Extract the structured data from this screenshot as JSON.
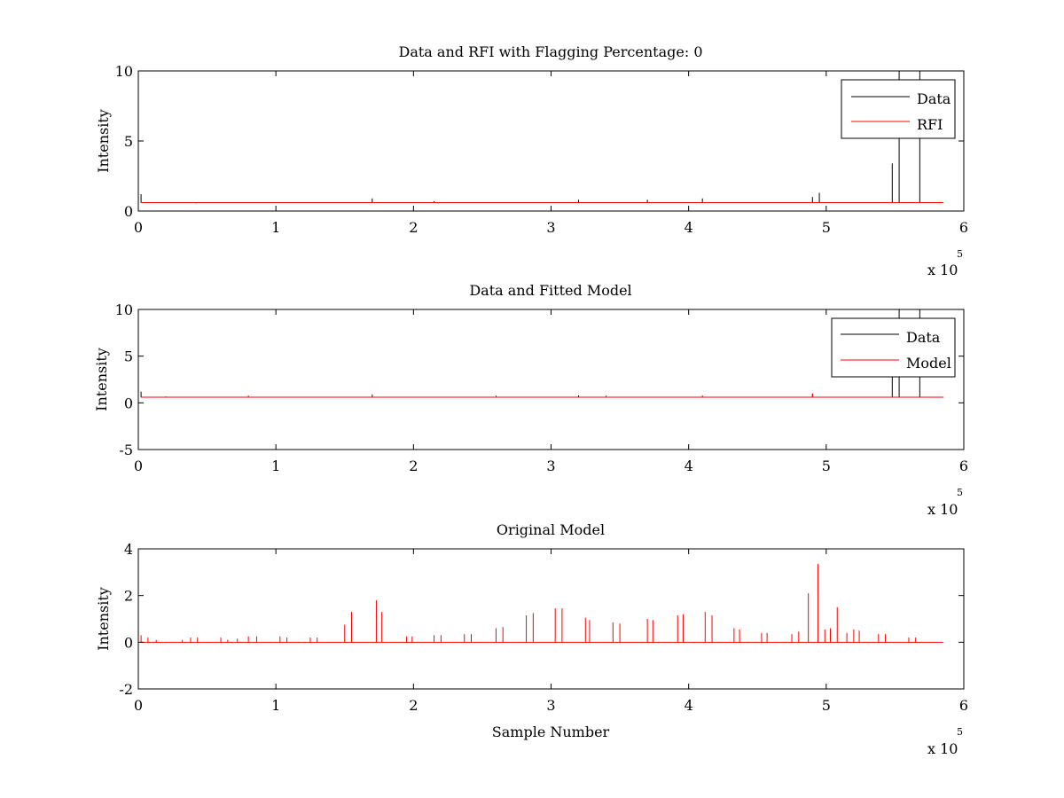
{
  "chart_data": [
    {
      "type": "line",
      "title": "Data and RFI with Flagging Percentage: 0",
      "xlabel": "",
      "ylabel": "Intensity",
      "xlim": [
        0,
        6
      ],
      "ylim": [
        0,
        10
      ],
      "xticks": [
        "0",
        "1",
        "2",
        "3",
        "4",
        "5",
        "6"
      ],
      "yticks": [
        "0",
        "5",
        "10"
      ],
      "x_exponent_label": "x 10",
      "x_exponent": "5",
      "legend": [
        "Data",
        "RFI"
      ],
      "legend_position": "top-right",
      "baseline": 0.6,
      "series": [
        {
          "name": "Data",
          "color": "#000000",
          "spikes": [
            [
              0.02,
              1.2
            ],
            [
              1.7,
              0.9
            ],
            [
              2.15,
              0.7
            ],
            [
              3.2,
              0.8
            ],
            [
              3.7,
              0.8
            ],
            [
              4.1,
              0.9
            ],
            [
              4.9,
              1.0
            ],
            [
              4.95,
              1.3
            ],
            [
              5.48,
              3.4
            ],
            [
              5.53,
              10
            ],
            [
              5.68,
              10
            ]
          ]
        },
        {
          "name": "RFI",
          "color": "#ff0000",
          "spikes": [
            [
              0.42,
              0.55
            ],
            [
              2.18,
              0.55
            ]
          ]
        }
      ]
    },
    {
      "type": "line",
      "title": "Data and Fitted Model",
      "xlabel": "",
      "ylabel": "Intensity",
      "xlim": [
        0,
        6
      ],
      "ylim": [
        -5,
        10
      ],
      "xticks": [
        "0",
        "1",
        "2",
        "3",
        "4",
        "5",
        "6"
      ],
      "yticks": [
        "-5",
        "0",
        "5",
        "10"
      ],
      "x_exponent_label": "x 10",
      "x_exponent": "5",
      "legend": [
        "Data",
        "Model"
      ],
      "legend_position": "top-right",
      "baseline": 0.6,
      "series": [
        {
          "name": "Data",
          "color": "#000000",
          "spikes": [
            [
              0.02,
              1.2
            ],
            [
              1.7,
              0.9
            ],
            [
              3.2,
              0.8
            ],
            [
              4.9,
              1.0
            ],
            [
              5.48,
              3.4
            ],
            [
              5.53,
              10
            ],
            [
              5.68,
              10
            ]
          ]
        },
        {
          "name": "Model",
          "color": "#ff0000",
          "spikes": [
            [
              0.2,
              0.7
            ],
            [
              0.8,
              0.8
            ],
            [
              1.7,
              0.9
            ],
            [
              2.6,
              0.8
            ],
            [
              3.4,
              0.8
            ],
            [
              4.1,
              0.8
            ],
            [
              4.9,
              1.0
            ]
          ]
        }
      ]
    },
    {
      "type": "line",
      "title": "Original Model",
      "xlabel": "Sample Number",
      "ylabel": "Intensity",
      "xlim": [
        0,
        6
      ],
      "ylim": [
        -2,
        4
      ],
      "xticks": [
        "0",
        "1",
        "2",
        "3",
        "4",
        "5",
        "6"
      ],
      "yticks": [
        "-2",
        "0",
        "2",
        "4"
      ],
      "x_exponent_label": "x 10",
      "x_exponent": "5",
      "baseline": 0.0,
      "series": [
        {
          "color": "#ff0000",
          "spikes": [
            [
              0.02,
              0.3
            ],
            [
              0.07,
              0.2
            ],
            [
              0.13,
              0.1
            ],
            [
              0.32,
              0.1
            ],
            [
              0.38,
              0.2
            ],
            [
              0.43,
              0.2
            ],
            [
              0.6,
              0.2
            ],
            [
              0.65,
              0.1
            ],
            [
              0.72,
              0.15
            ],
            [
              0.8,
              0.25
            ],
            [
              0.86,
              0.25
            ],
            [
              1.03,
              0.25
            ],
            [
              1.08,
              0.2
            ],
            [
              1.25,
              0.2
            ],
            [
              1.3,
              0.2
            ],
            [
              1.5,
              0.75
            ],
            [
              1.55,
              1.3
            ],
            [
              1.73,
              1.8
            ],
            [
              1.77,
              1.3
            ],
            [
              1.95,
              0.25
            ],
            [
              1.99,
              0.25
            ],
            [
              2.15,
              0.3
            ],
            [
              2.2,
              0.3
            ],
            [
              2.37,
              0.35
            ],
            [
              2.42,
              0.35
            ],
            [
              2.6,
              0.6
            ],
            [
              2.65,
              0.65
            ],
            [
              2.82,
              1.15
            ],
            [
              2.87,
              1.25
            ],
            [
              3.03,
              1.45
            ],
            [
              3.08,
              1.45
            ],
            [
              3.25,
              1.05
            ],
            [
              3.28,
              0.95
            ],
            [
              3.45,
              0.85
            ],
            [
              3.5,
              0.8
            ],
            [
              3.7,
              1.0
            ],
            [
              3.74,
              0.95
            ],
            [
              3.92,
              1.15
            ],
            [
              3.96,
              1.2
            ],
            [
              4.12,
              1.3
            ],
            [
              4.17,
              1.15
            ],
            [
              4.33,
              0.6
            ],
            [
              4.37,
              0.55
            ],
            [
              4.53,
              0.4
            ],
            [
              4.57,
              0.4
            ],
            [
              4.75,
              0.35
            ],
            [
              4.8,
              0.45
            ],
            [
              4.87,
              2.1
            ],
            [
              4.94,
              3.35
            ],
            [
              4.99,
              0.55
            ],
            [
              5.03,
              0.6
            ],
            [
              5.08,
              1.5
            ],
            [
              5.15,
              0.4
            ],
            [
              5.2,
              0.55
            ],
            [
              5.24,
              0.5
            ],
            [
              5.38,
              0.35
            ],
            [
              5.43,
              0.35
            ],
            [
              5.6,
              0.2
            ],
            [
              5.65,
              0.2
            ]
          ]
        }
      ]
    }
  ]
}
